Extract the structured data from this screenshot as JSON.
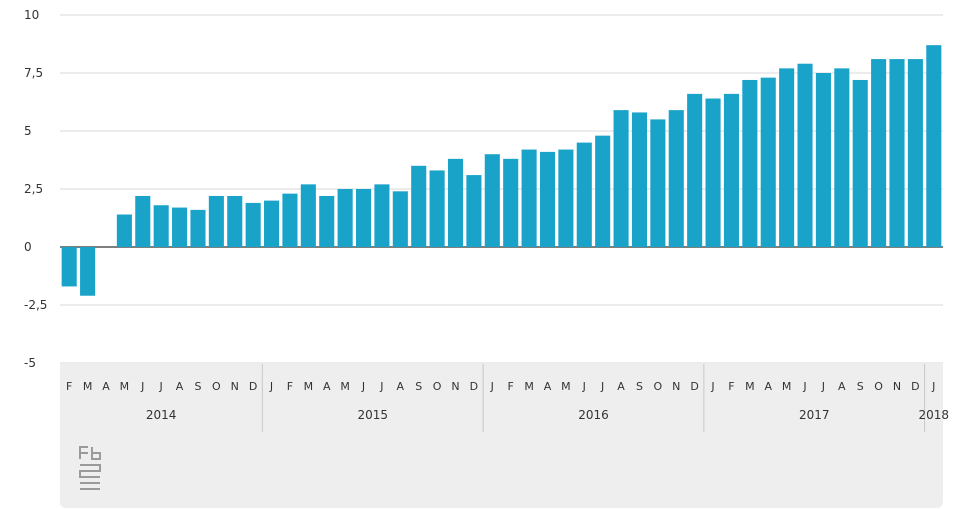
{
  "chart_data": {
    "type": "bar",
    "categories": [
      "F",
      "M",
      "A",
      "M",
      "J",
      "J",
      "A",
      "S",
      "O",
      "N",
      "D",
      "J",
      "F",
      "M",
      "A",
      "M",
      "J",
      "J",
      "A",
      "S",
      "O",
      "N",
      "D",
      "J",
      "F",
      "M",
      "A",
      "M",
      "J",
      "J",
      "A",
      "S",
      "O",
      "N",
      "D",
      "J",
      "F",
      "M",
      "A",
      "M",
      "J",
      "J",
      "A",
      "S",
      "O",
      "N",
      "D",
      "J"
    ],
    "years": [
      {
        "label": "2014",
        "start": 0,
        "count": 11
      },
      {
        "label": "2015",
        "start": 11,
        "count": 12
      },
      {
        "label": "2016",
        "start": 23,
        "count": 12
      },
      {
        "label": "2017",
        "start": 35,
        "count": 12
      },
      {
        "label": "2018",
        "start": 47,
        "count": 1
      }
    ],
    "values": [
      -1.7,
      -2.1,
      0,
      1.4,
      2.2,
      1.8,
      1.7,
      1.6,
      2.2,
      2.2,
      1.9,
      2.0,
      2.3,
      2.7,
      2.2,
      2.5,
      2.5,
      2.7,
      2.4,
      3.5,
      3.3,
      3.8,
      3.1,
      4.0,
      3.8,
      4.2,
      4.1,
      4.2,
      4.5,
      4.8,
      5.9,
      5.8,
      5.5,
      5.9,
      6.6,
      6.4,
      6.6,
      7.2,
      7.3,
      7.7,
      7.9,
      7.5,
      7.7,
      7.2,
      8.1,
      8.1,
      8.1,
      8.7
    ],
    "ylim": [
      -5,
      10
    ],
    "yticks": [
      "-5",
      "-2,5",
      "0",
      "2,5",
      "5",
      "7,5",
      "10"
    ],
    "ytick_values": [
      -5,
      -2.5,
      0,
      2.5,
      5,
      7.5,
      10
    ],
    "bar_color": "#1aa3c9",
    "grid": true
  },
  "logo": {
    "name": "cbs-logo"
  }
}
